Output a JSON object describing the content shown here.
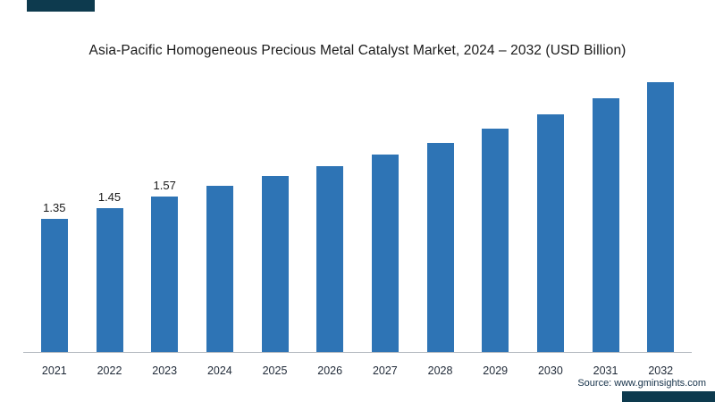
{
  "title": "Asia-Pacific Homogeneous Precious Metal Catalyst Market, 2024 – 2032 (USD Billion)",
  "source": "Source: www.gminsights.com",
  "colors": {
    "bar": "#2E74B5",
    "corner_accent": "#0d3a4e",
    "axis": "#b3b9bf"
  },
  "chart_data": {
    "type": "bar",
    "title": "Asia-Pacific Homogeneous Precious Metal Catalyst Market, 2024 – 2032 (USD Billion)",
    "categories": [
      "2021",
      "2022",
      "2023",
      "2024",
      "2025",
      "2026",
      "2027",
      "2028",
      "2029",
      "2030",
      "2031",
      "2032"
    ],
    "values": [
      1.35,
      1.45,
      1.57,
      1.68,
      1.78,
      1.88,
      1.99,
      2.11,
      2.25,
      2.4,
      2.56,
      2.74
    ],
    "data_labels": [
      "1.35",
      "1.45",
      "1.57",
      "",
      "",
      "",
      "",
      "",
      "",
      "",
      "",
      ""
    ],
    "xlabel": "",
    "ylabel": "USD Billion",
    "ylim": [
      0,
      2.9
    ],
    "grid": false,
    "legend": "none"
  }
}
